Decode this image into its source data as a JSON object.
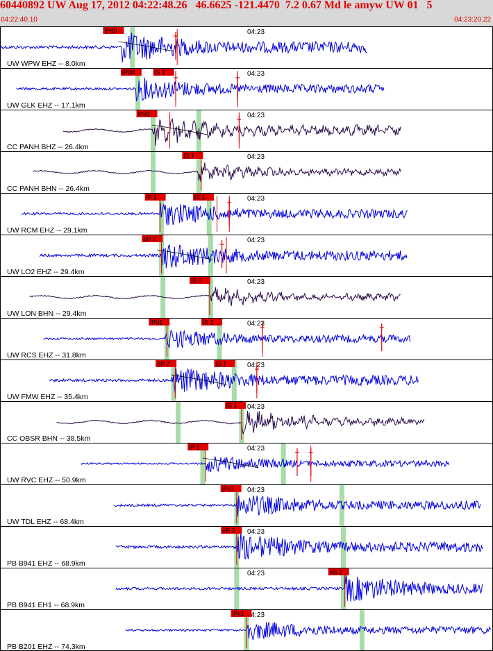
{
  "header": {
    "title": "60440892 UW Aug 17, 2012 04:22:48.26   46.6625 -121.4470  7.2 0.67 Md le amyw UW 01   5",
    "start_time": "04:22:40.10",
    "end_time": "04:23:20.22"
  },
  "colors": {
    "blue_trace": "#0000dd",
    "purple_trace": "#2a0a4a",
    "pick_bg": "#e00000",
    "pick_text": "#000000",
    "green_band": "#a8dca8",
    "header_text": "#e00000",
    "header_bg": "#d8d8d8"
  },
  "time_tick": "04:23",
  "panels": [
    {
      "label": "UW WPW EHZ -- 8.0km",
      "color": "blue",
      "trace_start": 0.0,
      "trace_end": 0.746,
      "amp": 9,
      "onset": 0.247,
      "picks": [
        {
          "text": "iPd0",
          "t": 0.211
        }
      ],
      "s_markers": [
        0.356
      ],
      "ticks": [
        0.359
      ],
      "green": [
        0.268
      ],
      "curve": true
    },
    {
      "label": "UW GLK EHZ -- 17.1km",
      "color": "blue",
      "trace_start": 0.032,
      "trace_end": 0.78,
      "amp": 7,
      "onset": 0.274,
      "picks": [
        {
          "text": "iPd0",
          "t": 0.247
        },
        {
          "text": "iS 1",
          "t": 0.313
        }
      ],
      "s_markers": [
        0.356,
        0.482
      ],
      "ticks": [
        0.356,
        0.482
      ],
      "green": [
        0.279
      ],
      "curve": false
    },
    {
      "label": "CC PANH BHZ -- 26.4km",
      "color": "purple",
      "trace_start": 0.127,
      "trace_end": 0.814,
      "amp": 6,
      "onset": 0.31,
      "picks": [
        {
          "text": "iPd1",
          "t": 0.279
        }
      ],
      "s_markers": [
        0.485
      ],
      "ticks": [
        0.344,
        0.485
      ],
      "green": [
        0.31,
        0.403
      ],
      "curve": true
    },
    {
      "label": "CC PANH BHN -- 26.4km",
      "color": "purple",
      "trace_start": 0.066,
      "trace_end": 0.814,
      "amp": 4,
      "onset": 0.4,
      "picks": [
        {
          "text": "iS 1",
          "t": 0.372
        }
      ],
      "s_markers": [],
      "ticks": [
        0.408
      ],
      "green": [
        0.31,
        0.403
      ],
      "curve": false
    },
    {
      "label": "UW RCM EHZ -- 29.1km",
      "color": "blue",
      "trace_start": 0.042,
      "trace_end": 0.828,
      "amp": 7,
      "onset": 0.324,
      "picks": [
        {
          "text": "iP 1",
          "t": 0.296
        },
        {
          "text": "iS 1",
          "t": 0.394
        }
      ],
      "s_markers": [
        0.465
      ],
      "ticks": [
        0.324,
        0.44,
        0.465
      ],
      "green": [
        0.327,
        0.424
      ],
      "curve": false
    },
    {
      "label": "UW LO2 EHZ -- 29.4km",
      "color": "blue",
      "trace_start": 0.079,
      "trace_end": 0.828,
      "amp": 8,
      "onset": 0.327,
      "picks": [
        {
          "text": "eP 2",
          "t": 0.29
        }
      ],
      "s_markers": [
        0.45
      ],
      "ticks": [
        0.327,
        0.459
      ],
      "green": [
        0.327,
        0.427
      ],
      "curve": true
    },
    {
      "label": "UW LON BHN -- 29.4km",
      "color": "purple",
      "trace_start": 0.059,
      "trace_end": 0.814,
      "amp": 4,
      "onset": 0.427,
      "picks": [
        {
          "text": "iS 0",
          "t": 0.387
        }
      ],
      "s_markers": [],
      "ticks": [
        0.425
      ],
      "green": [
        0.33,
        0.427
      ],
      "curve": false
    },
    {
      "label": "UW RCS EHZ -- 31.8km",
      "color": "blue",
      "trace_start": 0.087,
      "trace_end": 0.834,
      "amp": 6,
      "onset": 0.335,
      "picks": [
        {
          "text": "iPd1",
          "t": 0.304
        },
        {
          "text": "iS 1",
          "t": 0.411
        }
      ],
      "s_markers": [
        0.532,
        0.775
      ],
      "ticks": [
        0.338,
        0.532
      ],
      "green": [
        0.338,
        0.445
      ],
      "curve": false
    },
    {
      "label": "UW FMW EHZ -- 35.4km",
      "color": "blue",
      "trace_start": 0.099,
      "trace_end": 0.851,
      "amp": 8,
      "onset": 0.347,
      "picks": [
        {
          "text": "eP 2",
          "t": 0.318
        },
        {
          "text": "iS 1",
          "t": 0.437
        }
      ],
      "s_markers": [
        0.521
      ],
      "ticks": [
        0.355,
        0.521
      ],
      "green": [
        0.352,
        0.475
      ],
      "curve": true
    },
    {
      "label": "CC OBSR BHN -- 38.5km",
      "color": "purple",
      "trace_start": 0.114,
      "trace_end": 0.862,
      "amp": 5,
      "onset": 0.49,
      "picks": [
        {
          "text": "iS 1",
          "t": 0.459
        }
      ],
      "s_markers": [],
      "ticks": [
        0.49
      ],
      "green": [
        0.361,
        0.49
      ],
      "curve": false
    },
    {
      "label": "UW RVC EHZ -- 50.9km",
      "color": "blue",
      "trace_start": 0.163,
      "trace_end": 0.913,
      "amp": 5,
      "onset": 0.417,
      "picks": [
        {
          "text": "iP 1",
          "t": 0.383
        }
      ],
      "s_markers": [
        0.603,
        0.631
      ],
      "ticks": [
        0.417,
        0.631
      ],
      "green": [
        0.411,
        0.575
      ],
      "curve": true
    },
    {
      "label": "UW TDL EHZ -- 68.4km",
      "color": "blue",
      "trace_start": 0.23,
      "trace_end": 0.977,
      "amp": 7,
      "onset": 0.48,
      "picks": [
        {
          "text": "iPc1",
          "t": 0.45
        }
      ],
      "s_markers": [],
      "ticks": [
        0.48
      ],
      "green": [
        0.48,
        0.694
      ],
      "curve": false
    },
    {
      "label": "PB B941 EHZ -- 68.9km",
      "color": "blue",
      "trace_start": 0.234,
      "trace_end": 0.98,
      "amp": 8,
      "onset": 0.48,
      "picks": [
        {
          "text": "eP 2",
          "t": 0.451
        }
      ],
      "s_markers": [],
      "ticks": [
        0.48
      ],
      "green": [
        0.48,
        0.697
      ],
      "curve": false
    },
    {
      "label": "PB B941 EH1 -- 68.9km",
      "color": "blue",
      "trace_start": 0.234,
      "trace_end": 0.98,
      "amp": 8,
      "onset": 0.7,
      "picks": [
        {
          "text": "eS 2",
          "t": 0.669
        }
      ],
      "s_markers": [],
      "ticks": [
        0.7
      ],
      "green": [
        0.48,
        0.697
      ],
      "curve": false
    },
    {
      "label": "PB B201 EHZ -- 74.3km",
      "color": "blue",
      "trace_start": 0.254,
      "trace_end": 0.998,
      "amp": 6,
      "onset": 0.5,
      "picks": [
        {
          "text": "iPc1",
          "t": 0.471
        }
      ],
      "s_markers": [],
      "ticks": [
        0.5
      ],
      "green": [
        0.5,
        0.735
      ],
      "curve": false
    }
  ]
}
